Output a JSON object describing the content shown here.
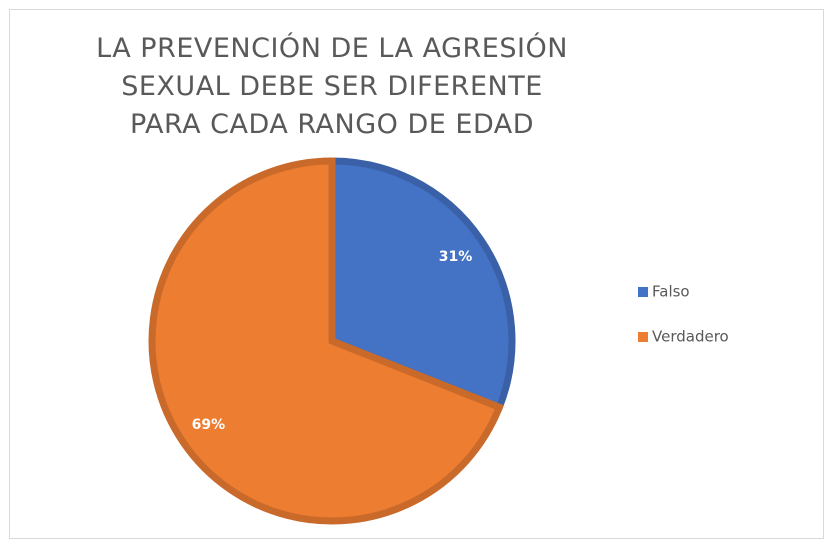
{
  "chart_data": {
    "type": "pie",
    "title": "LA PREVENCIÓN DE LA AGRESIÓN SEXUAL DEBE SER DIFERENTE PARA CADA RANGO DE EDAD",
    "categories": [
      "Falso",
      "Verdadero"
    ],
    "values": [
      31,
      69
    ],
    "value_labels": [
      "31%",
      "69%"
    ],
    "colors": [
      "#4472c4",
      "#ed7d31"
    ],
    "legend": "right"
  }
}
